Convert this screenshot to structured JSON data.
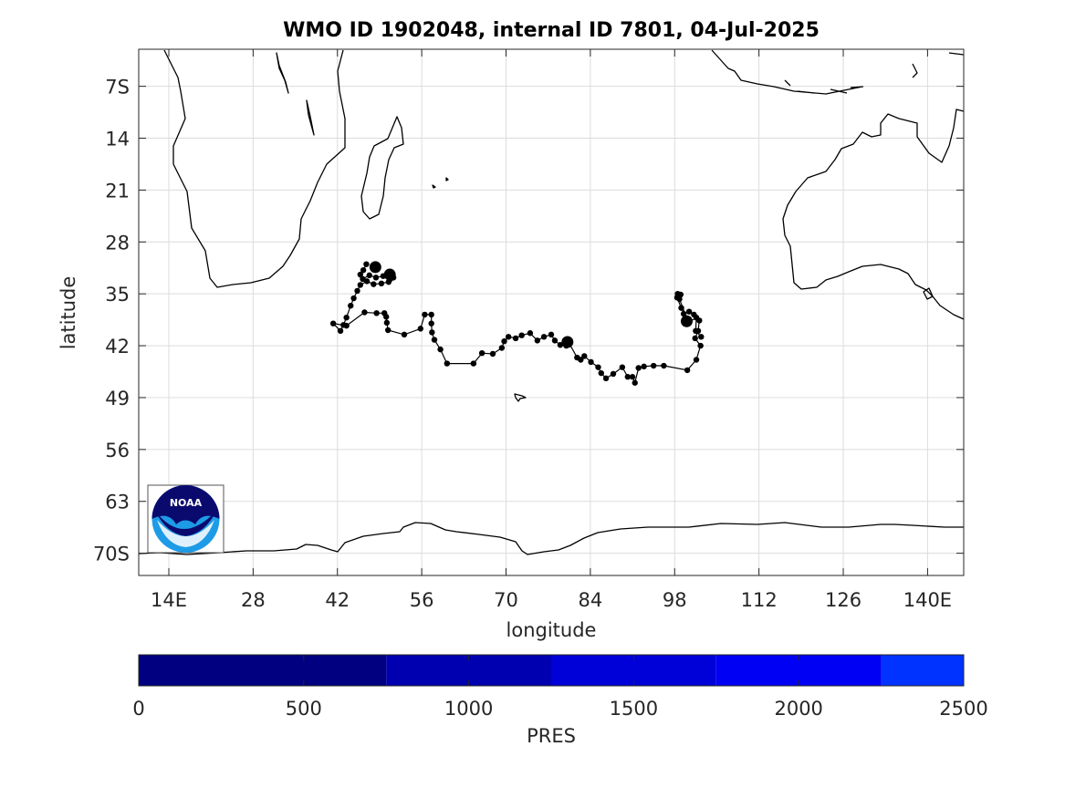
{
  "title": "WMO ID 1902048, internal ID 7801, 04-Jul-2025",
  "map": {
    "xlabel": "longitude",
    "ylabel": "latitude",
    "lon_range": [
      9,
      146
    ],
    "lat_range_south": [
      2,
      73
    ],
    "lon_ticks": [
      {
        "value": 14,
        "label": "14E"
      },
      {
        "value": 28,
        "label": "28"
      },
      {
        "value": 42,
        "label": "42"
      },
      {
        "value": 56,
        "label": "56"
      },
      {
        "value": 70,
        "label": "70"
      },
      {
        "value": 84,
        "label": "84"
      },
      {
        "value": 98,
        "label": "98"
      },
      {
        "value": 112,
        "label": "112"
      },
      {
        "value": 126,
        "label": "126"
      },
      {
        "value": 140,
        "label": "140E"
      }
    ],
    "lat_ticks": [
      {
        "value": 7,
        "label": "7S"
      },
      {
        "value": 14,
        "label": "14"
      },
      {
        "value": 21,
        "label": "21"
      },
      {
        "value": 28,
        "label": "28"
      },
      {
        "value": 35,
        "label": "35"
      },
      {
        "value": 42,
        "label": "42"
      },
      {
        "value": 49,
        "label": "49"
      },
      {
        "value": 56,
        "label": "56"
      },
      {
        "value": 63,
        "label": "63"
      },
      {
        "value": 70,
        "label": "70S"
      }
    ],
    "grid": true,
    "logo_text": "NOAA",
    "logo_colors": {
      "navy": "#0a0a6e",
      "sky": "#1e9be6"
    }
  },
  "chart_data": {
    "type": "scatter",
    "series": [
      {
        "marker_color": "#000000",
        "points": [
          [
            46.8,
            31.0
          ],
          [
            46.3,
            31.8
          ],
          [
            45.8,
            32.4
          ],
          [
            46.2,
            33.0
          ],
          [
            47.3,
            32.5
          ],
          [
            48.4,
            32.8
          ],
          [
            49.6,
            32.6
          ],
          [
            50.8,
            33.0
          ],
          [
            51.3,
            32.8
          ],
          [
            50.5,
            33.4
          ],
          [
            49.3,
            33.6
          ],
          [
            48.0,
            33.7
          ],
          [
            46.9,
            33.3
          ],
          [
            45.8,
            33.8
          ],
          [
            45.3,
            34.6
          ],
          [
            44.7,
            35.6
          ],
          [
            44.2,
            36.6
          ],
          [
            43.5,
            38.2
          ],
          [
            43.0,
            39.2
          ],
          [
            42.5,
            40.0
          ],
          [
            41.3,
            39.0
          ],
          [
            43.5,
            39.3
          ],
          [
            46.5,
            37.5
          ],
          [
            48.5,
            37.6
          ],
          [
            49.8,
            37.6
          ],
          [
            50.1,
            38.1
          ],
          [
            50.2,
            38.9
          ],
          [
            50.4,
            39.9
          ],
          [
            53.1,
            40.5
          ],
          [
            55.8,
            39.7
          ],
          [
            56.5,
            37.8
          ],
          [
            57.6,
            37.8
          ],
          [
            57.6,
            39.0
          ],
          [
            57.7,
            40.2
          ],
          [
            58.1,
            41.2
          ],
          [
            59.1,
            42.5
          ],
          [
            60.2,
            44.4
          ],
          [
            64.6,
            44.4
          ],
          [
            66.0,
            43.0
          ],
          [
            67.8,
            43.1
          ],
          [
            69.3,
            42.3
          ],
          [
            69.7,
            41.4
          ],
          [
            70.4,
            40.8
          ],
          [
            71.6,
            41.0
          ],
          [
            72.6,
            40.6
          ],
          [
            74.0,
            40.3
          ],
          [
            75.2,
            41.3
          ],
          [
            76.3,
            40.8
          ],
          [
            77.5,
            40.5
          ],
          [
            78.1,
            41.3
          ],
          [
            79.0,
            41.9
          ],
          [
            80.0,
            42.0
          ],
          [
            80.5,
            41.7
          ],
          [
            81.8,
            43.6
          ],
          [
            82.4,
            43.9
          ],
          [
            83.0,
            43.4
          ],
          [
            84.1,
            44.2
          ],
          [
            85.3,
            44.9
          ],
          [
            85.8,
            45.7
          ],
          [
            86.6,
            46.4
          ],
          [
            87.8,
            45.8
          ],
          [
            89.3,
            44.9
          ],
          [
            90.2,
            46.2
          ],
          [
            91.0,
            46.2
          ],
          [
            91.4,
            47.0
          ],
          [
            92.0,
            45.0
          ],
          [
            92.9,
            44.8
          ],
          [
            94.5,
            44.7
          ],
          [
            96.2,
            44.7
          ],
          [
            100.1,
            45.3
          ],
          [
            101.6,
            43.9
          ],
          [
            102.3,
            42.0
          ],
          [
            101.4,
            41.0
          ],
          [
            101.9,
            40.0
          ],
          [
            102.1,
            38.6
          ],
          [
            101.2,
            37.8
          ],
          [
            100.4,
            37.4
          ],
          [
            99.5,
            37.7
          ],
          [
            99.1,
            36.9
          ],
          [
            98.4,
            35.5
          ],
          [
            98.5,
            35.0
          ],
          [
            99.0,
            35.1
          ],
          [
            98.8,
            35.7
          ],
          [
            100.3,
            38.9
          ],
          [
            101.6,
            38.2
          ],
          [
            101.5,
            40.0
          ],
          [
            102.4,
            40.8
          ]
        ]
      }
    ],
    "large_markers": [
      [
        48.3,
        31.4
      ],
      [
        50.7,
        32.4
      ],
      [
        80.2,
        41.5
      ],
      [
        100.0,
        38.7
      ]
    ]
  },
  "colorbar": {
    "label": "PRES",
    "min": 0,
    "max": 2500,
    "tick_labels": [
      "0",
      "500",
      "1000",
      "1500",
      "2000",
      "2500"
    ],
    "tick_values": [
      0,
      500,
      1000,
      1500,
      2000,
      2500
    ],
    "segments": [
      {
        "from": 0,
        "to": 750,
        "color": "#000080"
      },
      {
        "from": 750,
        "to": 1250,
        "color": "#0000b0"
      },
      {
        "from": 1250,
        "to": 1750,
        "color": "#0000d8"
      },
      {
        "from": 1750,
        "to": 2250,
        "color": "#0000f5"
      },
      {
        "from": 2250,
        "to": 2500,
        "color": "#0033ff"
      }
    ]
  }
}
